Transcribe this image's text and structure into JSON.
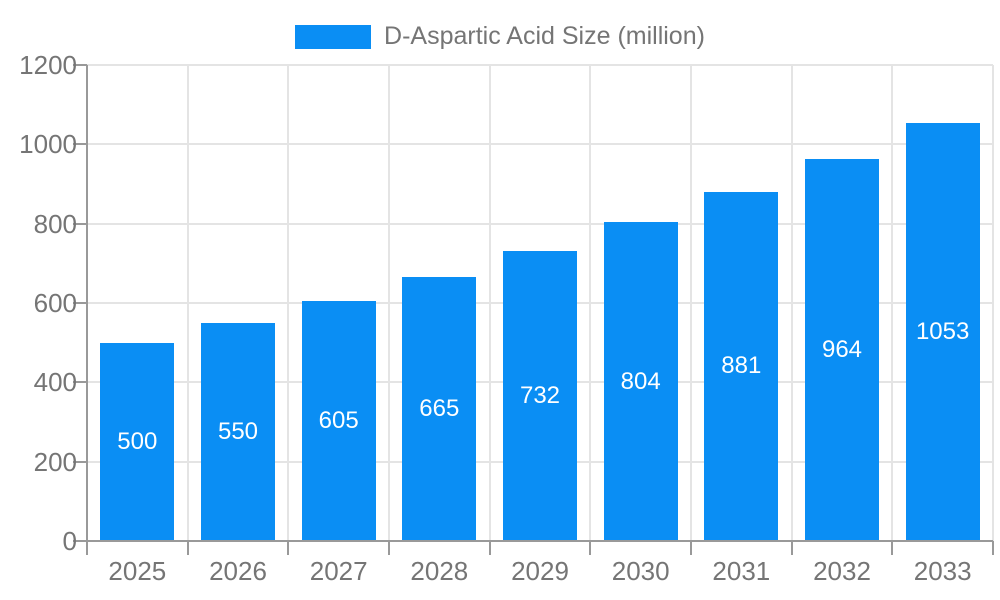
{
  "legend": {
    "label": "D-Aspartic Acid Size (million)"
  },
  "chart_data": {
    "type": "bar",
    "title": "",
    "xlabel": "",
    "ylabel": "",
    "categories": [
      "2025",
      "2026",
      "2027",
      "2028",
      "2029",
      "2030",
      "2031",
      "2032",
      "2033"
    ],
    "series": [
      {
        "name": "D-Aspartic Acid Size (million)",
        "values": [
          500,
          550,
          605,
          665,
          732,
          804,
          881,
          964,
          1053
        ]
      }
    ],
    "ylim": [
      0,
      1200
    ],
    "yticks": [
      0,
      200,
      400,
      600,
      800,
      1000,
      1200
    ],
    "grid": true,
    "legend_position": "top-center",
    "bar_color": "#0A8EF4",
    "value_label_position": "inside-center",
    "value_label_color": "#FFFFFF"
  },
  "colors": {
    "background": "#FFFFFF",
    "axis": "#999999",
    "grid": "#E4E4E4",
    "tick_text": "#757575"
  }
}
